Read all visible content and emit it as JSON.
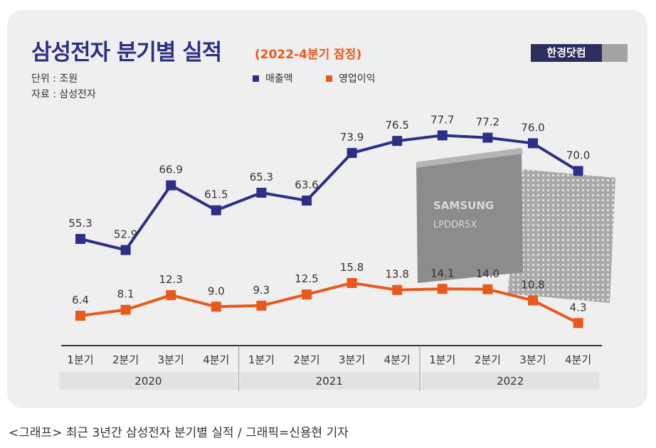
{
  "header": {
    "title": "삼성전자 분기별 실적",
    "subtitle": "(2022-4분기 잠정)",
    "brand": "한경닷컴",
    "unit": "단위 : 조원",
    "source": "자료 : 삼성전자"
  },
  "chip": {
    "brand": "SAMSUNG",
    "model": "LPDDR5X"
  },
  "colors": {
    "revenue": "#2d2e86",
    "profit": "#e8591c",
    "title": "#2d2e86",
    "subtitle": "#e8591c",
    "background": "#efefef"
  },
  "chart_data": {
    "type": "line",
    "title": "삼성전자 분기별 실적",
    "subtitle": "(2022-4분기 잠정)",
    "unit": "단위 : 조원",
    "categories": [
      "1분기",
      "2분기",
      "3분기",
      "4분기",
      "1분기",
      "2분기",
      "3분기",
      "4분기",
      "1분기",
      "2분기",
      "3분기",
      "4분기"
    ],
    "year_groups": [
      {
        "label": "2020",
        "start": 0,
        "end": 3
      },
      {
        "label": "2021",
        "start": 4,
        "end": 7
      },
      {
        "label": "2022",
        "start": 8,
        "end": 11
      }
    ],
    "series": [
      {
        "name": "매출액",
        "values": [
          55.3,
          52.9,
          66.9,
          61.5,
          65.3,
          63.6,
          73.9,
          76.5,
          77.7,
          77.2,
          76.0,
          70.0
        ]
      },
      {
        "name": "영업이익",
        "values": [
          6.4,
          8.1,
          12.3,
          9.0,
          9.3,
          12.5,
          15.8,
          13.8,
          14.1,
          14.0,
          10.8,
          4.3
        ]
      }
    ],
    "value_labels": [
      [
        "55.3",
        "52.9",
        "66.9",
        "61.5",
        "65.3",
        "63.6",
        "73.9",
        "76.5",
        "77.7",
        "77.2",
        "76.0",
        "70.0"
      ],
      [
        "6.4",
        "8.1",
        "12.3",
        "9.0",
        "9.3",
        "12.5",
        "15.8",
        "13.8",
        "14.1",
        "14.0",
        "10.8",
        "4.3"
      ]
    ],
    "legend_position": "top",
    "grid": false
  },
  "caption": "<그래프> 최근 3년간 삼성전자 분기별 실적 / 그래픽=신용현 기자"
}
